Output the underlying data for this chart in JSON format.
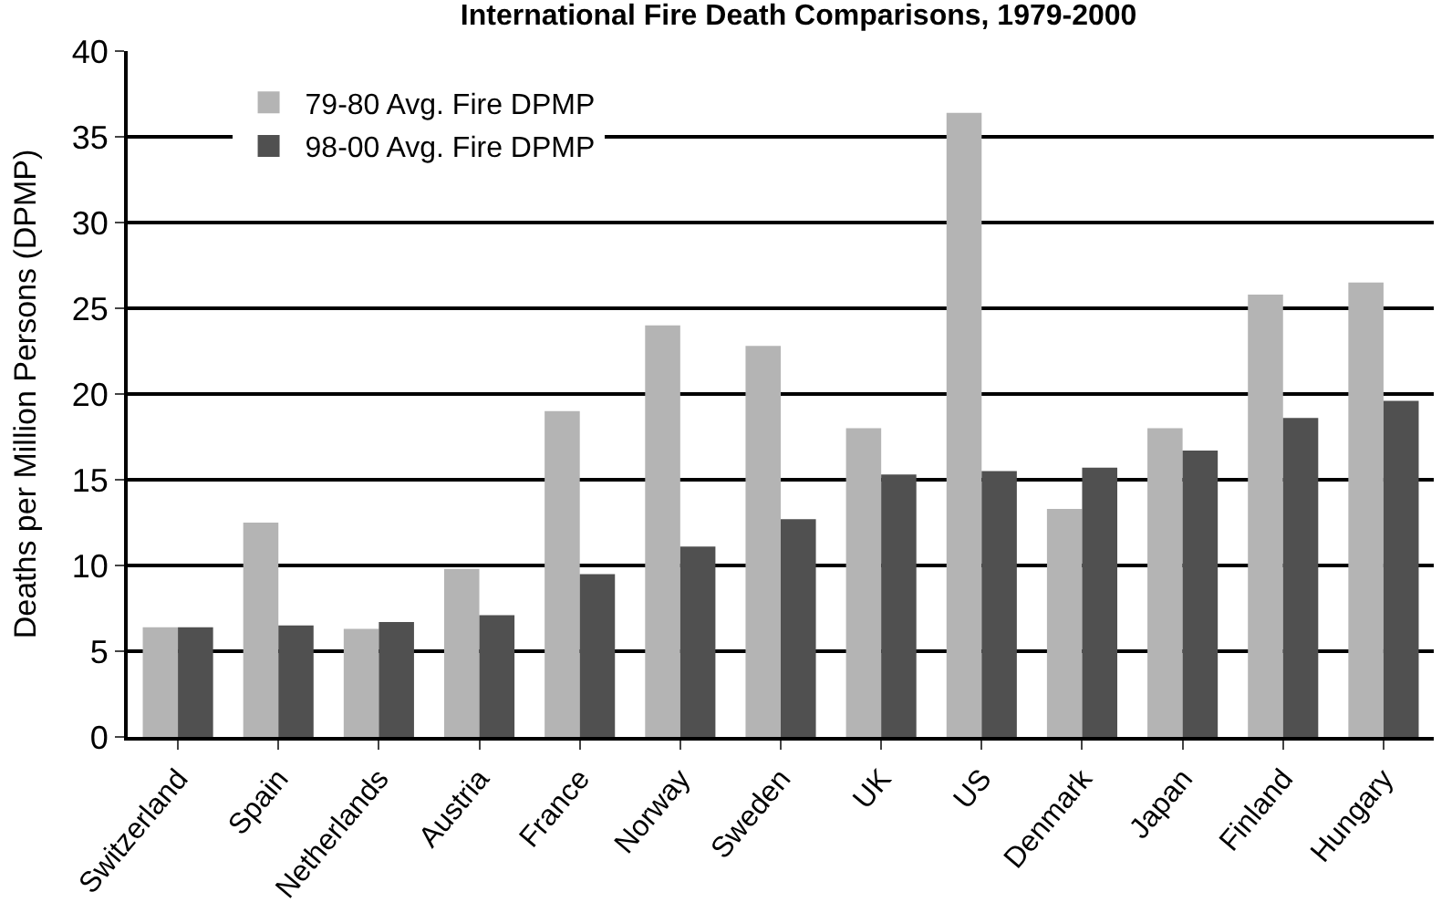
{
  "chart_data": {
    "type": "bar",
    "title": "International Fire Death Comparisons, 1979-2000",
    "ylabel": "Deaths per Million Persons (DPMP)",
    "categories": [
      "Switzerland",
      "Spain",
      "Netherlands",
      "Austria",
      "France",
      "Norway",
      "Sweden",
      "UK",
      "US",
      "Denmark",
      "Japan",
      "Finland",
      "Hungary"
    ],
    "series": [
      {
        "name": "79-80 Avg. Fire DPMP",
        "color": "#b4b4b4",
        "values": [
          6.4,
          12.5,
          6.3,
          9.8,
          19,
          24,
          22.8,
          18,
          36.4,
          13.3,
          18,
          25.8,
          26.5
        ]
      },
      {
        "name": "98-00 Avg. Fire DPMP",
        "color": "#505050",
        "values": [
          6.4,
          6.5,
          6.7,
          7.1,
          9.5,
          11.1,
          12.7,
          15.3,
          15.5,
          15.7,
          16.7,
          18.6,
          19.6
        ]
      }
    ],
    "ylim": [
      0,
      40
    ],
    "yticks": [
      0,
      5,
      10,
      15,
      20,
      25,
      30,
      35,
      40
    ],
    "grid": "y",
    "legend": "top left"
  }
}
